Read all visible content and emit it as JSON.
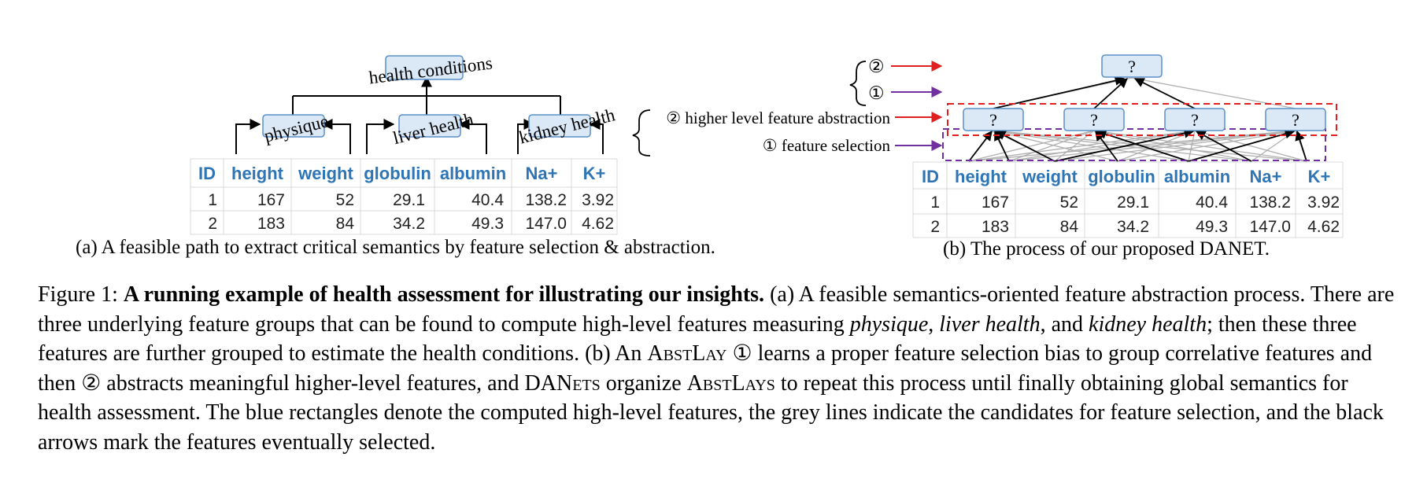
{
  "panel_a": {
    "root_label": "health conditions",
    "groups": [
      {
        "label": "physique"
      },
      {
        "label": "liver health"
      },
      {
        "label": "kidney health"
      }
    ],
    "caption": "(a) A feasible path to extract critical semantics by feature selection & abstraction."
  },
  "table": {
    "headers": [
      "ID",
      "height",
      "weight",
      "globulin",
      "albumin",
      "Na+",
      "K+"
    ],
    "rows": [
      [
        "1",
        "167",
        "52",
        "29.1",
        "40.4",
        "138.2",
        "3.92"
      ],
      [
        "2",
        "183",
        "84",
        "34.2",
        "49.3",
        "147.0",
        "4.62"
      ]
    ]
  },
  "panel_b": {
    "legend_top": "②",
    "legend_bottom": "①",
    "label_abstraction": "② higher level feature abstraction",
    "label_selection": "① feature selection",
    "node_mark": "?",
    "caption": "(b) The process of our proposed DANET."
  },
  "figure_caption": {
    "prefix": "Figure 1: ",
    "bold": "A running example of health assessment for illustrating our insights.",
    "s1": " (a) A feasible semantics-oriented feature abstraction process. There are three underlying feature groups that can be found to compute high-level features measuring ",
    "i1": "physique",
    "s2": ", ",
    "i2": "liver health",
    "s3": ", and ",
    "i3": "kidney health",
    "s4": "; then these three features are further grouped to estimate the health conditions. (b) An ",
    "sc1": "AbstLay",
    "s5": " ① learns a proper feature selection bias to group correlative features and then ② abstracts meaningful higher-level features, and ",
    "sc2": "DANets",
    "s6": " organize ",
    "sc3": "AbstLays",
    "s7": " to repeat this process until finally obtaining global semantics for health assessment. The blue rectangles denote the computed high-level features, the grey lines indicate the candidates for feature selection, and the black arrows mark the features eventually selected."
  },
  "colors": {
    "node_fill": "#dbe8f6",
    "node_stroke": "#5b8fc9",
    "header_text": "#2e75b6",
    "red": "#e02020",
    "purple": "#7030a0",
    "grey": "#b0b0b0"
  }
}
